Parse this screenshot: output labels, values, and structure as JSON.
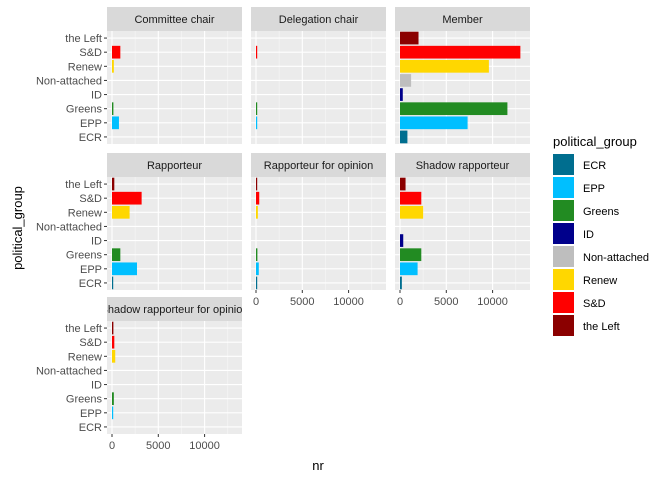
{
  "chart_data": {
    "type": "bar",
    "orientation": "horizontal",
    "facet_layout": "wrap",
    "xlabel": "nr",
    "ylabel": "political_group",
    "xlim": [
      0,
      13500
    ],
    "x_ticks": [
      0,
      5000,
      10000
    ],
    "x_tick_labels": [
      "0",
      "5000",
      "10000"
    ],
    "categories": [
      "ECR",
      "EPP",
      "Greens",
      "ID",
      "Non-attached",
      "Renew",
      "S&D",
      "the Left"
    ],
    "colors": {
      "ECR": "#006e8f",
      "EPP": "#00bfff",
      "Greens": "#228b22",
      "ID": "#00008b",
      "Non-attached": "#bebebe",
      "Renew": "#ffd700",
      "S&D": "#ff0000",
      "the Left": "#8b0000"
    },
    "legend": {
      "title": "political_group",
      "position": "right",
      "entries": [
        "ECR",
        "EPP",
        "Greens",
        "ID",
        "Non-attached",
        "Renew",
        "S&D",
        "the Left"
      ]
    },
    "grid": true,
    "facets": [
      {
        "label": "Committee chair",
        "values": {
          "ECR": 0,
          "EPP": 750,
          "Greens": 150,
          "ID": 0,
          "Non-attached": 0,
          "Renew": 200,
          "S&D": 900,
          "the Left": 0
        }
      },
      {
        "label": "Delegation chair",
        "values": {
          "ECR": 0,
          "EPP": 60,
          "Greens": 50,
          "ID": 0,
          "Non-attached": 0,
          "Renew": 0,
          "S&D": 120,
          "the Left": 0
        }
      },
      {
        "label": "Member",
        "values": {
          "ECR": 800,
          "EPP": 7300,
          "Greens": 11600,
          "ID": 300,
          "Non-attached": 1200,
          "Renew": 9600,
          "S&D": 13000,
          "the Left": 2000
        }
      },
      {
        "label": "Rapporteur",
        "values": {
          "ECR": 60,
          "EPP": 2700,
          "Greens": 900,
          "ID": 0,
          "Non-attached": 0,
          "Renew": 1900,
          "S&D": 3200,
          "the Left": 250
        }
      },
      {
        "label": "Rapporteur for opinion",
        "values": {
          "ECR": 30,
          "EPP": 300,
          "Greens": 150,
          "ID": 0,
          "Non-attached": 0,
          "Renew": 200,
          "S&D": 350,
          "the Left": 40
        }
      },
      {
        "label": "Shadow rapporteur",
        "values": {
          "ECR": 200,
          "EPP": 1900,
          "Greens": 2300,
          "ID": 350,
          "Non-attached": 0,
          "Renew": 2500,
          "S&D": 2300,
          "the Left": 600
        }
      },
      {
        "label": "Shadow rapporteur for opinion",
        "values": {
          "ECR": 0,
          "EPP": 100,
          "Greens": 200,
          "ID": 0,
          "Non-attached": 0,
          "Renew": 350,
          "S&D": 250,
          "the Left": 150
        }
      }
    ]
  }
}
